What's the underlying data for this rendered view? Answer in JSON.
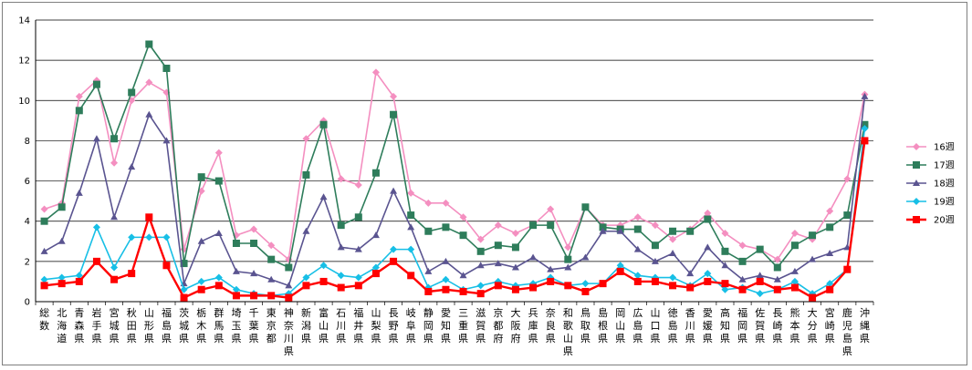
{
  "chart_data": {
    "type": "line",
    "title": "",
    "xlabel": "",
    "ylabel": "",
    "ylim": [
      0,
      14
    ],
    "yticks": [
      0,
      2,
      4,
      6,
      8,
      10,
      12,
      14
    ],
    "grid": "horizontal",
    "legend_position": "right",
    "categories": [
      "総数",
      "北海道",
      "青森県",
      "岩手県",
      "宮城県",
      "秋田県",
      "山形県",
      "福島県",
      "茨城県",
      "栃木県",
      "群馬県",
      "埼玉県",
      "千葉県",
      "東京都",
      "神奈川県",
      "新潟県",
      "富山県",
      "石川県",
      "福井県",
      "山梨県",
      "長野県",
      "岐阜県",
      "静岡県",
      "愛知県",
      "三重県",
      "滋賀県",
      "京都府",
      "大阪府",
      "兵庫県",
      "奈良県",
      "和歌山県",
      "鳥取県",
      "島根県",
      "岡山県",
      "広島県",
      "山口県",
      "徳島県",
      "香川県",
      "愛媛県",
      "高知県",
      "福岡県",
      "佐賀県",
      "長崎県",
      "熊本県",
      "大分県",
      "宮崎県",
      "鹿児島県",
      "沖縄県"
    ],
    "series": [
      {
        "name": "16週",
        "color": "#f48fc0",
        "marker": "diamond",
        "values": [
          4.6,
          4.9,
          10.2,
          11.0,
          6.9,
          10.0,
          10.9,
          10.4,
          2.6,
          5.5,
          7.4,
          3.3,
          3.6,
          2.8,
          2.1,
          8.1,
          9.0,
          6.1,
          5.8,
          11.4,
          10.2,
          5.4,
          4.9,
          4.9,
          4.2,
          3.1,
          3.8,
          3.4,
          3.8,
          4.6,
          2.7,
          4.7,
          3.8,
          3.8,
          4.2,
          3.8,
          3.1,
          3.6,
          4.4,
          3.4,
          2.8,
          2.6,
          2.1,
          3.4,
          3.1,
          4.5,
          6.1,
          10.3
        ]
      },
      {
        "name": "17週",
        "color": "#2e7d5b",
        "marker": "square",
        "values": [
          4.0,
          4.7,
          9.5,
          10.8,
          8.1,
          10.4,
          12.8,
          11.6,
          1.9,
          6.2,
          6.0,
          2.9,
          2.9,
          2.1,
          1.7,
          6.3,
          8.8,
          3.8,
          4.2,
          6.4,
          9.3,
          4.3,
          3.5,
          3.7,
          3.3,
          2.5,
          2.8,
          2.7,
          3.8,
          3.8,
          2.1,
          4.7,
          3.7,
          3.6,
          3.6,
          2.8,
          3.5,
          3.5,
          4.1,
          2.5,
          2.0,
          2.6,
          1.7,
          2.8,
          3.3,
          3.7,
          4.3,
          8.8
        ]
      },
      {
        "name": "18週",
        "color": "#5a5490",
        "marker": "triangle",
        "values": [
          2.5,
          3.0,
          5.4,
          8.1,
          4.2,
          6.7,
          9.3,
          8.0,
          0.9,
          3.0,
          3.4,
          1.5,
          1.4,
          1.1,
          0.8,
          3.5,
          5.2,
          2.7,
          2.6,
          3.3,
          5.5,
          3.7,
          1.5,
          2.0,
          1.3,
          1.8,
          1.9,
          1.7,
          2.2,
          1.6,
          1.7,
          2.2,
          3.5,
          3.5,
          2.6,
          2.0,
          2.4,
          1.4,
          2.7,
          1.8,
          1.1,
          1.3,
          1.1,
          1.5,
          2.1,
          2.4,
          2.7,
          10.2
        ]
      },
      {
        "name": "19週",
        "color": "#17bfe6",
        "marker": "diamond",
        "values": [
          1.1,
          1.2,
          1.3,
          3.7,
          1.7,
          3.2,
          3.2,
          3.2,
          0.6,
          1.0,
          1.2,
          0.6,
          0.4,
          0.3,
          0.4,
          1.2,
          1.8,
          1.3,
          1.2,
          1.7,
          2.6,
          2.6,
          0.7,
          1.1,
          0.6,
          0.8,
          1.0,
          0.8,
          0.9,
          1.2,
          0.8,
          0.9,
          0.9,
          1.8,
          1.3,
          1.2,
          1.2,
          0.8,
          1.4,
          0.6,
          0.7,
          0.4,
          0.6,
          1.0,
          0.4,
          0.9,
          1.6,
          8.6
        ]
      },
      {
        "name": "20週",
        "color": "#ff0000",
        "marker": "square",
        "values": [
          0.8,
          0.9,
          1.0,
          2.0,
          1.1,
          1.4,
          4.2,
          1.8,
          0.2,
          0.6,
          0.8,
          0.3,
          0.3,
          0.3,
          0.2,
          0.8,
          1.0,
          0.7,
          0.8,
          1.4,
          2.0,
          1.3,
          0.5,
          0.6,
          0.5,
          0.4,
          0.8,
          0.6,
          0.7,
          1.0,
          0.8,
          0.5,
          0.9,
          1.5,
          1.0,
          1.0,
          0.8,
          0.7,
          1.0,
          0.9,
          0.6,
          1.0,
          0.6,
          0.7,
          0.2,
          0.6,
          1.6,
          8.0
        ]
      }
    ]
  }
}
